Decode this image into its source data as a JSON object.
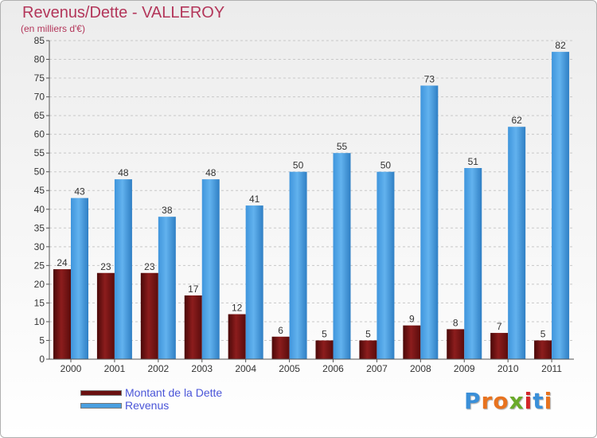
{
  "title": "Revenus/Dette - VALLEROY",
  "subtitle": "(en milliers d'€)",
  "logo_text": "Proxiti",
  "chart_data": {
    "type": "bar",
    "categories": [
      "2000",
      "2001",
      "2002",
      "2003",
      "2004",
      "2005",
      "2006",
      "2007",
      "2008",
      "2009",
      "2010",
      "2011"
    ],
    "series": [
      {
        "name": "Montant de la Dette",
        "color": "#7a1414",
        "values": [
          24,
          23,
          23,
          17,
          12,
          6,
          5,
          5,
          9,
          8,
          7,
          5
        ]
      },
      {
        "name": "Revenus",
        "color": "#4a9fe0",
        "values": [
          43,
          48,
          38,
          48,
          41,
          50,
          55,
          50,
          73,
          51,
          62,
          82
        ]
      }
    ],
    "ylim": [
      0,
      85
    ],
    "ytick_step": 5,
    "grid": true,
    "legend_position": "bottom-left"
  }
}
